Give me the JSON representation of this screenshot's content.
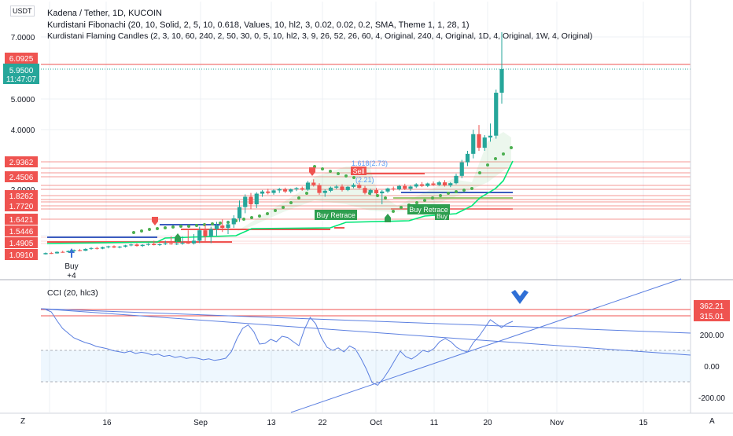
{
  "header": {
    "currency": "USDT",
    "title": "Kadena / Tether, 1D, KUCOIN",
    "indicator1": "Kurdistani Fibonachi (20, 10, Solid, 2, 5, 10, 0.618, Values, 10, hl2, 3, 0.02, 0.02, 0.2, SMA, Theme 1, 1, 28, 1)",
    "indicator2": "Kurdistani Flaming Candles (2, 3, 10, 60, 240, 2, 50, 30, 0, 5, 10, hl2, 3, 9, 26, 52, 26, 60, 4, Original, 240, 4, Original, 1D, 4, Original, 1W, 4, Original)"
  },
  "price_panel": {
    "axis_ticks": [
      "7.0000",
      "5.0000",
      "4.0000",
      "2.0000"
    ],
    "last_price": "5.9500",
    "countdown": "11:47:07",
    "colors": {
      "up": "#26a69a",
      "down": "#ef5350",
      "level_red": "#ef5350",
      "ema_green": "#00e676",
      "dots": "#4caf50",
      "fib_blue": "#5b9cf6"
    },
    "price_tags": [
      {
        "label": "6.0925",
        "color": "#ef5350"
      },
      {
        "label": "2.9362",
        "color": "#ef5350"
      },
      {
        "label": "2.4506",
        "color": "#ef5350"
      },
      {
        "label": "1.8262",
        "color": "#ef5350"
      },
      {
        "label": "1.7720",
        "color": "#ef5350"
      },
      {
        "label": "1.6421",
        "color": "#ef5350"
      },
      {
        "label": "1.5446",
        "color": "#ef5350"
      },
      {
        "label": "1.4905",
        "color": "#ef5350"
      },
      {
        "label": "1.0910",
        "color": "#ef5350"
      }
    ],
    "annotations": {
      "buy_label": "Buy",
      "buy_count": "+4",
      "sell_label": "Sell",
      "buy_retrace_1": "Buy Retrace",
      "buy_retrace_2": "Buy Retrace",
      "buy_small": "Buy",
      "fib_1": "1.618(2.73)",
      "fib_2": "(2.21)"
    }
  },
  "cci_panel": {
    "title": "CCI (20, hlc3)",
    "axis_ticks": [
      "200.00",
      "0.00",
      "-200.00"
    ],
    "value_tags": [
      {
        "label": "362.21",
        "color": "#ef5350"
      },
      {
        "label": "315.01",
        "color": "#ef5350"
      }
    ],
    "upper_band": 100,
    "lower_band": -100,
    "line_color": "#5b7fe0"
  },
  "time_axis": {
    "labels": [
      "16",
      "Sep",
      "13",
      "22",
      "Oct",
      "11",
      "20",
      "Nov",
      "15"
    ]
  },
  "corner_buttons": {
    "left": "Z",
    "right": "A"
  },
  "chart_data": [
    {
      "type": "candlestick",
      "title": "Kadena / Tether, 1D, KUCOIN",
      "ylabel": "USDT",
      "y_ticks": [
        7.0,
        5.0,
        4.0,
        2.0
      ],
      "ohlc": [
        [
          1.1,
          1.16,
          1.08,
          1.14
        ],
        [
          1.14,
          1.18,
          1.11,
          1.13
        ],
        [
          1.13,
          1.2,
          1.12,
          1.18
        ],
        [
          1.18,
          1.22,
          1.15,
          1.17
        ],
        [
          1.17,
          1.23,
          1.15,
          1.21
        ],
        [
          1.21,
          1.26,
          1.18,
          1.24
        ],
        [
          1.24,
          1.28,
          1.2,
          1.22
        ],
        [
          1.22,
          1.3,
          1.21,
          1.28
        ],
        [
          1.28,
          1.34,
          1.25,
          1.31
        ],
        [
          1.31,
          1.35,
          1.26,
          1.29
        ],
        [
          1.29,
          1.36,
          1.27,
          1.34
        ],
        [
          1.34,
          1.39,
          1.3,
          1.37
        ],
        [
          1.37,
          1.4,
          1.31,
          1.33
        ],
        [
          1.33,
          1.38,
          1.3,
          1.36
        ],
        [
          1.36,
          1.42,
          1.33,
          1.4
        ],
        [
          1.4,
          1.46,
          1.37,
          1.43
        ],
        [
          1.43,
          1.47,
          1.36,
          1.38
        ],
        [
          1.38,
          1.44,
          1.35,
          1.42
        ],
        [
          1.42,
          1.48,
          1.39,
          1.45
        ],
        [
          1.45,
          1.5,
          1.4,
          1.41
        ],
        [
          1.41,
          1.47,
          1.38,
          1.44
        ],
        [
          1.44,
          1.5,
          1.41,
          1.47
        ],
        [
          1.47,
          1.52,
          1.42,
          1.44
        ],
        [
          1.44,
          1.5,
          1.41,
          1.46
        ],
        [
          1.46,
          1.52,
          1.42,
          1.49
        ],
        [
          1.49,
          1.55,
          1.45,
          1.47
        ],
        [
          1.47,
          1.53,
          1.43,
          1.5
        ],
        [
          1.5,
          1.58,
          1.48,
          1.55
        ],
        [
          1.55,
          1.6,
          1.49,
          1.52
        ],
        [
          1.52,
          1.58,
          1.48,
          1.56
        ],
        [
          1.56,
          1.62,
          1.52,
          1.59
        ],
        [
          1.59,
          1.64,
          1.54,
          1.57
        ],
        [
          1.57,
          1.63,
          1.53,
          1.6
        ],
        [
          1.6,
          1.68,
          1.57,
          1.65
        ],
        [
          1.65,
          1.8,
          1.62,
          1.76
        ],
        [
          1.76,
          1.86,
          1.7,
          1.82
        ],
        [
          1.82,
          1.9,
          1.74,
          1.78
        ],
        [
          1.78,
          1.92,
          1.75,
          1.88
        ],
        [
          1.88,
          1.98,
          1.82,
          1.94
        ],
        [
          1.94,
          2.02,
          1.86,
          1.9
        ],
        [
          1.9,
          2.0,
          1.85,
          1.97
        ],
        [
          1.97,
          2.05,
          1.9,
          2.01
        ],
        [
          2.01,
          2.06,
          1.9,
          1.94
        ],
        [
          1.94,
          2.03,
          1.89,
          2.0
        ],
        [
          2.0,
          2.08,
          1.95,
          2.04
        ],
        [
          2.04,
          2.1,
          1.96,
          1.99
        ],
        [
          1.99,
          2.3,
          1.96,
          2.24
        ],
        [
          2.24,
          2.36,
          2.1,
          2.15
        ],
        [
          2.15,
          2.22,
          1.85,
          1.9
        ],
        [
          1.9,
          2.0,
          1.82,
          1.96
        ],
        [
          1.96,
          2.1,
          1.92,
          2.06
        ],
        [
          2.06,
          2.16,
          2.0,
          2.1
        ],
        [
          2.1,
          2.18,
          1.94,
          1.98
        ],
        [
          1.98,
          2.12,
          1.95,
          2.09
        ],
        [
          2.09,
          2.22,
          2.04,
          2.16
        ],
        [
          2.16,
          2.24,
          2.02,
          2.05
        ],
        [
          2.05,
          2.12,
          1.86,
          1.9
        ],
        [
          1.9,
          2.02,
          1.84,
          1.98
        ],
        [
          1.98,
          2.05,
          1.86,
          1.89
        ],
        [
          1.89,
          1.98,
          1.78,
          1.94
        ],
        [
          1.94,
          2.06,
          1.9,
          2.03
        ],
        [
          2.03,
          2.1,
          1.96,
          2.0
        ],
        [
          2.0,
          2.16,
          1.97,
          2.12
        ],
        [
          2.12,
          2.2,
          1.98,
          2.02
        ],
        [
          2.02,
          2.14,
          1.96,
          2.1
        ],
        [
          2.1,
          2.22,
          2.05,
          2.18
        ],
        [
          2.18,
          2.26,
          2.08,
          2.12
        ],
        [
          2.12,
          2.24,
          2.08,
          2.21
        ],
        [
          2.21,
          2.28,
          2.12,
          2.16
        ],
        [
          2.16,
          2.3,
          2.12,
          2.25
        ],
        [
          2.25,
          2.33,
          2.1,
          2.14
        ],
        [
          2.14,
          2.26,
          2.08,
          2.22
        ],
        [
          2.22,
          2.55,
          2.18,
          2.48
        ],
        [
          2.48,
          3.0,
          2.4,
          2.92
        ],
        [
          2.92,
          3.3,
          2.8,
          3.2
        ],
        [
          3.2,
          4.0,
          3.05,
          3.85
        ],
        [
          3.85,
          4.15,
          3.3,
          3.4
        ],
        [
          3.4,
          3.82,
          3.3,
          3.74
        ],
        [
          3.74,
          4.2,
          3.6,
          3.8
        ],
        [
          3.8,
          5.3,
          3.7,
          5.2
        ],
        [
          5.2,
          7.15,
          4.85,
          5.95
        ]
      ]
    },
    {
      "type": "line",
      "title": "CCI (20, hlc3)",
      "y_ticks": [
        200,
        0,
        -200
      ],
      "values": [
        360,
        345,
        290,
        240,
        210,
        180,
        165,
        150,
        140,
        125,
        118,
        110,
        98,
        92,
        85,
        95,
        80,
        88,
        82,
        70,
        76,
        62,
        68,
        55,
        62,
        48,
        55,
        50,
        40,
        46,
        36,
        42,
        50,
        92,
        175,
        240,
        262,
        218,
        140,
        145,
        170,
        155,
        190,
        182,
        155,
        130,
        235,
        310,
        268,
        180,
        120,
        100,
        116,
        90,
        128,
        110,
        50,
        -20,
        -105,
        -122,
        -80,
        -26,
        35,
        95,
        60,
        45,
        68,
        100,
        90,
        112,
        155,
        175,
        155,
        120,
        100,
        90,
        150,
        190,
        242,
        295,
        270,
        245,
        270,
        285
      ]
    }
  ]
}
